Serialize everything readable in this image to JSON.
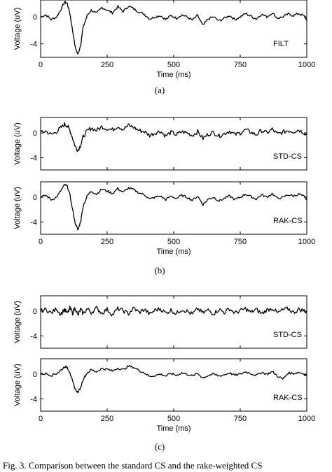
{
  "chart_data": [
    {
      "type": "line",
      "label": "FILT",
      "xlabel": "Time (ms)",
      "ylabel": "Voltage (uV)",
      "xlim": [
        0,
        1000
      ],
      "ylim": [
        -6,
        2.5
      ],
      "xticks": [
        0,
        250,
        500,
        750,
        1000
      ],
      "yticks": [
        0,
        -4
      ],
      "show_xticklabels": true,
      "show_xlabel": true,
      "panel_caption": "(a)",
      "x": [
        0,
        20,
        40,
        60,
        75,
        90,
        100,
        110,
        120,
        130,
        140,
        150,
        160,
        175,
        190,
        210,
        230,
        250,
        270,
        290,
        310,
        330,
        350,
        370,
        390,
        410,
        430,
        450,
        470,
        490,
        510,
        530,
        550,
        570,
        590,
        610,
        630,
        650,
        670,
        690,
        710,
        730,
        750,
        770,
        790,
        810,
        830,
        850,
        870,
        890,
        910,
        930,
        950,
        970,
        990,
        1000
      ],
      "y": [
        0,
        0.3,
        -0.4,
        0,
        1.0,
        2.2,
        2.0,
        0.5,
        -2.0,
        -4.5,
        -5.6,
        -4.2,
        -1.5,
        0.2,
        1.0,
        0.5,
        1.4,
        1.0,
        0.6,
        1.5,
        0.8,
        1.6,
        1.2,
        0.7,
        0.4,
        -0.3,
        0,
        0.2,
        -0.4,
        0.2,
        -0.2,
        0.3,
        0,
        -0.5,
        0.2,
        -1.3,
        -0.3,
        0,
        -0.6,
        -0.2,
        0.2,
        -0.4,
        0,
        0.5,
        0.1,
        -0.3,
        0.4,
        0,
        0.6,
        -0.2,
        0,
        0.4,
        0.2,
        0.5,
        0.1,
        -0.4
      ]
    },
    {
      "type": "line",
      "label": "STD-CS",
      "xlabel": "Time (ms)",
      "ylabel": "Voltage (uV)",
      "xlim": [
        0,
        1000
      ],
      "ylim": [
        -6,
        2.5
      ],
      "xticks": [
        0,
        250,
        500,
        750,
        1000
      ],
      "yticks": [
        0,
        -4
      ],
      "show_xticklabels": false,
      "show_xlabel": false,
      "panel_caption": "",
      "x": [
        0,
        20,
        40,
        60,
        75,
        90,
        100,
        110,
        120,
        130,
        140,
        150,
        160,
        175,
        190,
        210,
        230,
        250,
        270,
        290,
        310,
        330,
        350,
        370,
        390,
        410,
        430,
        450,
        470,
        490,
        510,
        530,
        550,
        570,
        590,
        610,
        630,
        650,
        670,
        690,
        710,
        730,
        750,
        770,
        790,
        810,
        830,
        850,
        870,
        890,
        910,
        930,
        950,
        970,
        990,
        1000
      ],
      "y": [
        0,
        0.3,
        -0.3,
        0.2,
        0.8,
        1.4,
        1.2,
        0.4,
        -0.8,
        -2.2,
        -2.8,
        -2.0,
        -0.6,
        0.3,
        0.8,
        0.4,
        1.0,
        0.7,
        0.5,
        1.1,
        0.6,
        1.2,
        0.9,
        0.4,
        0.2,
        -0.4,
        0,
        0.3,
        -0.5,
        0.1,
        -0.3,
        0.2,
        0,
        -0.4,
        0.2,
        -0.9,
        -0.2,
        0.1,
        -0.5,
        -0.1,
        0.3,
        -0.3,
        0,
        0.5,
        0.1,
        -0.3,
        0.4,
        0,
        0.6,
        -0.2,
        0.1,
        0.4,
        0.2,
        0.5,
        0,
        -0.3
      ]
    },
    {
      "type": "line",
      "label": "RAK-CS",
      "xlabel": "Time (ms)",
      "ylabel": "Voltage (uV)",
      "xlim": [
        0,
        1000
      ],
      "ylim": [
        -6,
        2.5
      ],
      "xticks": [
        0,
        250,
        500,
        750,
        1000
      ],
      "yticks": [
        0,
        -4
      ],
      "show_xticklabels": true,
      "show_xlabel": true,
      "panel_caption": "(b)",
      "x": [
        0,
        20,
        40,
        60,
        75,
        90,
        100,
        110,
        120,
        130,
        140,
        150,
        160,
        175,
        190,
        210,
        230,
        250,
        270,
        290,
        310,
        330,
        350,
        370,
        390,
        410,
        430,
        450,
        470,
        490,
        510,
        530,
        550,
        570,
        590,
        610,
        630,
        650,
        670,
        690,
        710,
        730,
        750,
        770,
        790,
        810,
        830,
        850,
        870,
        890,
        910,
        930,
        950,
        970,
        990,
        1000
      ],
      "y": [
        0,
        0.3,
        -0.4,
        0,
        1.0,
        2.0,
        1.8,
        0.4,
        -2.0,
        -4.2,
        -5.3,
        -4.0,
        -1.4,
        0.2,
        1.0,
        0.5,
        1.3,
        1.0,
        0.6,
        1.4,
        0.8,
        1.5,
        1.2,
        0.7,
        0.4,
        -0.3,
        0,
        0.2,
        -0.4,
        0.2,
        -0.2,
        0.3,
        0,
        -0.5,
        0.2,
        -1.2,
        -0.3,
        0,
        -0.6,
        -0.2,
        0.2,
        -0.4,
        0,
        0.5,
        0.1,
        -0.3,
        0.4,
        0,
        0.6,
        -0.2,
        0,
        0.4,
        0.2,
        0.5,
        0.1,
        -0.4
      ]
    },
    {
      "type": "line",
      "label": "STD-CS",
      "xlabel": "Time (ms)",
      "ylabel": "Voltage (uV)",
      "xlim": [
        0,
        1000
      ],
      "ylim": [
        -6,
        2.5
      ],
      "xticks": [
        0,
        250,
        500,
        750,
        1000
      ],
      "yticks": [
        0,
        -4
      ],
      "show_xticklabels": false,
      "show_xlabel": false,
      "panel_caption": "",
      "x": [
        0,
        20,
        40,
        60,
        75,
        90,
        100,
        110,
        120,
        130,
        140,
        150,
        160,
        175,
        190,
        210,
        230,
        250,
        270,
        290,
        310,
        330,
        350,
        370,
        390,
        410,
        430,
        450,
        470,
        490,
        510,
        530,
        550,
        570,
        590,
        610,
        630,
        650,
        670,
        690,
        710,
        730,
        750,
        770,
        790,
        810,
        830,
        850,
        870,
        890,
        910,
        930,
        950,
        970,
        990,
        1000
      ],
      "y": [
        0,
        0.3,
        -0.3,
        0.4,
        -0.5,
        0.3,
        -0.4,
        0.5,
        -0.3,
        0.6,
        -0.7,
        0.3,
        -0.4,
        0.4,
        -0.2,
        0.5,
        -0.3,
        0.3,
        -0.6,
        0.4,
        0.1,
        -0.4,
        0.5,
        -0.2,
        0.3,
        -0.5,
        0.2,
        0.4,
        -0.3,
        0.2,
        -0.4,
        0.3,
        0,
        -0.5,
        0.4,
        -0.3,
        0.2,
        -0.4,
        0.3,
        -0.2,
        0.4,
        -0.3,
        0.1,
        0.4,
        -0.2,
        0.3,
        -0.4,
        0.2,
        0.5,
        -0.3,
        0.2,
        0.4,
        -0.2,
        0.3,
        0.1,
        -0.2
      ]
    },
    {
      "type": "line",
      "label": "RAK-CS",
      "xlabel": "Time (ms)",
      "ylabel": "Voltage (uV)",
      "xlim": [
        0,
        1000
      ],
      "ylim": [
        -6,
        2.5
      ],
      "xticks": [
        0,
        250,
        500,
        750,
        1000
      ],
      "yticks": [
        0,
        -4
      ],
      "show_xticklabels": true,
      "show_xlabel": true,
      "panel_caption": "(c)",
      "x": [
        0,
        20,
        40,
        60,
        75,
        90,
        100,
        110,
        120,
        130,
        140,
        150,
        160,
        175,
        190,
        210,
        230,
        250,
        270,
        290,
        310,
        330,
        350,
        370,
        390,
        410,
        430,
        450,
        470,
        490,
        510,
        530,
        550,
        570,
        590,
        610,
        630,
        650,
        670,
        690,
        710,
        730,
        750,
        770,
        790,
        810,
        830,
        850,
        870,
        890,
        910,
        930,
        950,
        970,
        990,
        1000
      ],
      "y": [
        0,
        0.1,
        -0.2,
        0.1,
        0.6,
        1.2,
        1.1,
        0.3,
        -1.2,
        -2.4,
        -3.0,
        -2.2,
        -0.8,
        0.2,
        0.7,
        0.4,
        0.9,
        0.8,
        0.5,
        1.0,
        0.7,
        1.3,
        1.1,
        0.6,
        0.2,
        -0.4,
        -0.2,
        0,
        -0.3,
        0.1,
        -0.2,
        0.2,
        0,
        -0.3,
        0.1,
        -0.6,
        -0.2,
        0,
        -0.3,
        -0.1,
        0.2,
        -0.2,
        0,
        0.4,
        0.1,
        -0.2,
        0.3,
        0,
        0.4,
        -0.3,
        -0.8,
        0.2,
        0.1,
        0.3,
        0,
        -0.2
      ]
    }
  ],
  "bottom_text": "Fig. 3.   Comparison between the standard CS and the rake-weighted CS"
}
